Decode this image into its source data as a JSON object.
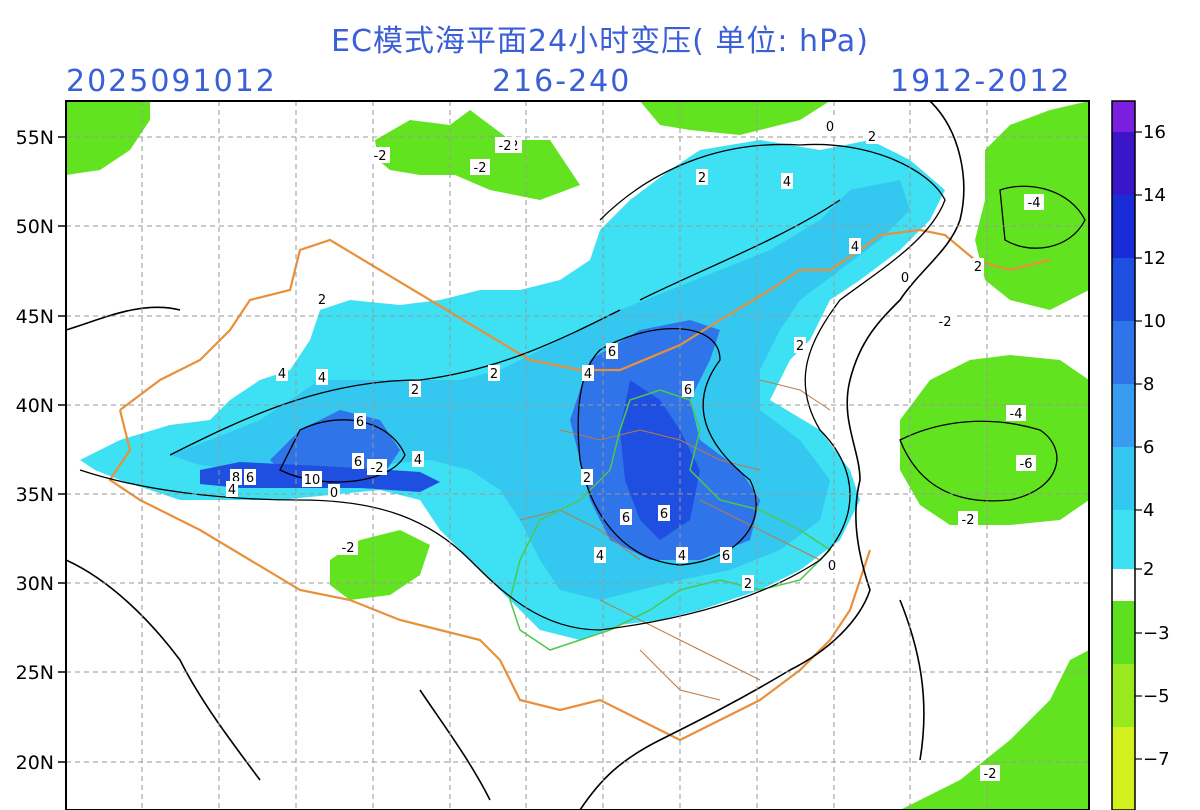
{
  "header": {
    "title": "EC模式海平面24小时变压( 单位: hPa)",
    "run_time": "2025091012",
    "forecast_hours": "216-240",
    "valid_period": "1912-2012"
  },
  "map": {
    "lat_labels": [
      "55N",
      "50N",
      "45N",
      "40N",
      "35N",
      "30N",
      "25N",
      "20N"
    ],
    "contour_labels": [
      "-2",
      "-2",
      "-2",
      "2",
      "0",
      "2",
      "4",
      "4",
      "2",
      "0",
      "-2",
      "-4",
      "-2",
      "2",
      "4",
      "6",
      "4",
      "4",
      "2",
      "6",
      "6",
      "4",
      "2",
      "10",
      "8",
      "6",
      "6",
      "4",
      "2",
      "4",
      "6",
      "6",
      "4",
      "6",
      "2",
      "2",
      "-2",
      "-2",
      "-4",
      "-6",
      "-2",
      "0",
      "0",
      "-2"
    ]
  },
  "colorbar": {
    "labels": [
      "16",
      "14",
      "12",
      "10",
      "8",
      "6",
      "4",
      "2",
      "−3",
      "−5",
      "−7"
    ],
    "colors": {
      "c16": "#7a1fe0",
      "c14": "#3a16c8",
      "c12": "#1a2cd8",
      "c10": "#1f4fe0",
      "c8": "#2f74e8",
      "c6": "#3a9cf0",
      "c4": "#34c8f0",
      "c2": "#3ee0f4",
      "white": "#ffffff",
      "g3": "#5ee021",
      "g5": "#9ae81e",
      "g7": "#d2f01e"
    }
  },
  "colors": {
    "text_blue": "#3b5fd6",
    "pos_light": "#3ee0f4",
    "pos_mid": "#34c8f0",
    "pos_blue": "#2f74e8",
    "pos_dark": "#1f4fe0",
    "neg_green": "#62e31f",
    "neg_yellowgreen": "#b8ec1e",
    "border_orange": "#e8903a",
    "province_brown": "#b87a4a",
    "region_green": "#4cc84c",
    "grid": "#999999"
  }
}
